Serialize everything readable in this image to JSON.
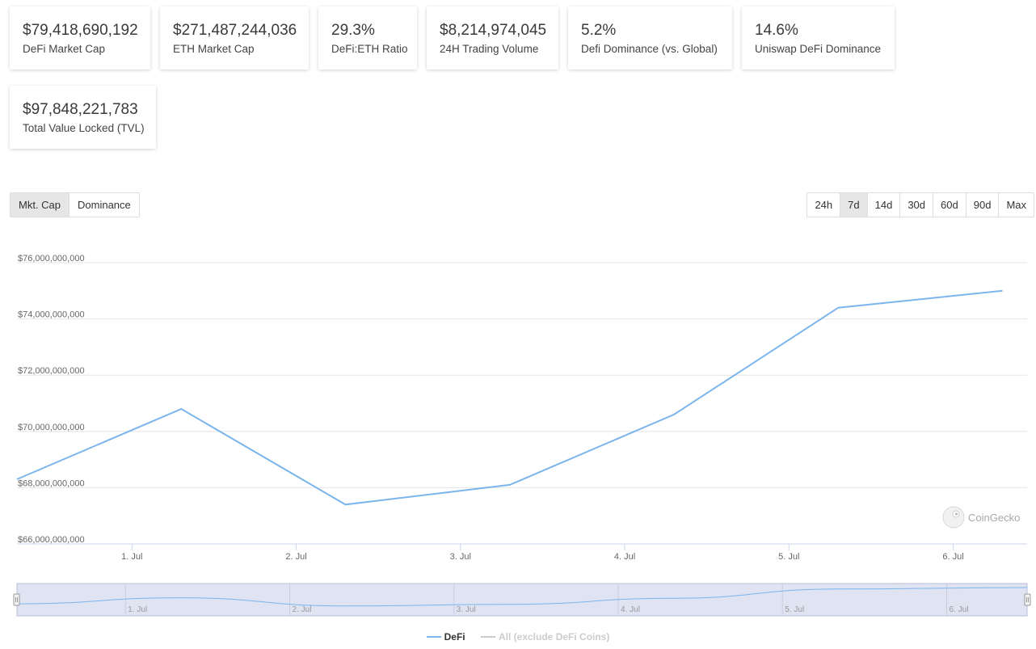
{
  "stats": [
    {
      "value": "$79,418,690,192",
      "label": "DeFi Market Cap"
    },
    {
      "value": "$271,487,244,036",
      "label": "ETH Market Cap"
    },
    {
      "value": "29.3%",
      "label": "DeFi:ETH Ratio"
    },
    {
      "value": "$8,214,974,045",
      "label": "24H Trading Volume"
    },
    {
      "value": "5.2%",
      "label": "Defi Dominance (vs. Global)"
    },
    {
      "value": "14.6%",
      "label": "Uniswap DeFi Dominance"
    },
    {
      "value": "$97,848,221,783",
      "label": "Total Value Locked (TVL)"
    }
  ],
  "view_toggle": {
    "items": [
      "Mkt. Cap",
      "Dominance"
    ],
    "selected": "Mkt. Cap"
  },
  "range_toggle": {
    "items": [
      "24h",
      "7d",
      "14d",
      "30d",
      "60d",
      "90d",
      "Max"
    ],
    "selected": "7d"
  },
  "watermark": "CoinGecko",
  "colors": {
    "series_line": "#7cb5ec",
    "navigator_fill": "#dfe3f2",
    "all_series": "#cccccc"
  },
  "chart_data": {
    "type": "line",
    "y_tick_labels": [
      "$66,000,000,000",
      "$68,000,000,000",
      "$70,000,000,000",
      "$72,000,000,000",
      "$74,000,000,000",
      "$76,000,000,000"
    ],
    "y_ticks": [
      66000000000,
      68000000000,
      70000000000,
      72000000000,
      74000000000,
      76000000000
    ],
    "ylim": [
      66000000000,
      76000000000
    ],
    "x_tick_labels": [
      "1. Jul",
      "2. Jul",
      "3. Jul",
      "4. Jul",
      "5. Jul",
      "6. Jul"
    ],
    "x_ticks": [
      1,
      2,
      3,
      4,
      5,
      6
    ],
    "xlim": [
      0.3,
      6.45
    ],
    "grid": true,
    "series": [
      {
        "name": "DeFi",
        "x": [
          0.3,
          1.3,
          2.3,
          3.3,
          4.3,
          5.3,
          6.3
        ],
        "values": [
          68300000000,
          70800000000,
          67400000000,
          68100000000,
          70600000000,
          74400000000,
          75000000000
        ]
      }
    ],
    "legend": [
      {
        "name": "DeFi",
        "visible": true
      },
      {
        "name": "All (exclude DeFi Coins)",
        "visible": false
      }
    ],
    "legend_position": "bottom-center"
  }
}
